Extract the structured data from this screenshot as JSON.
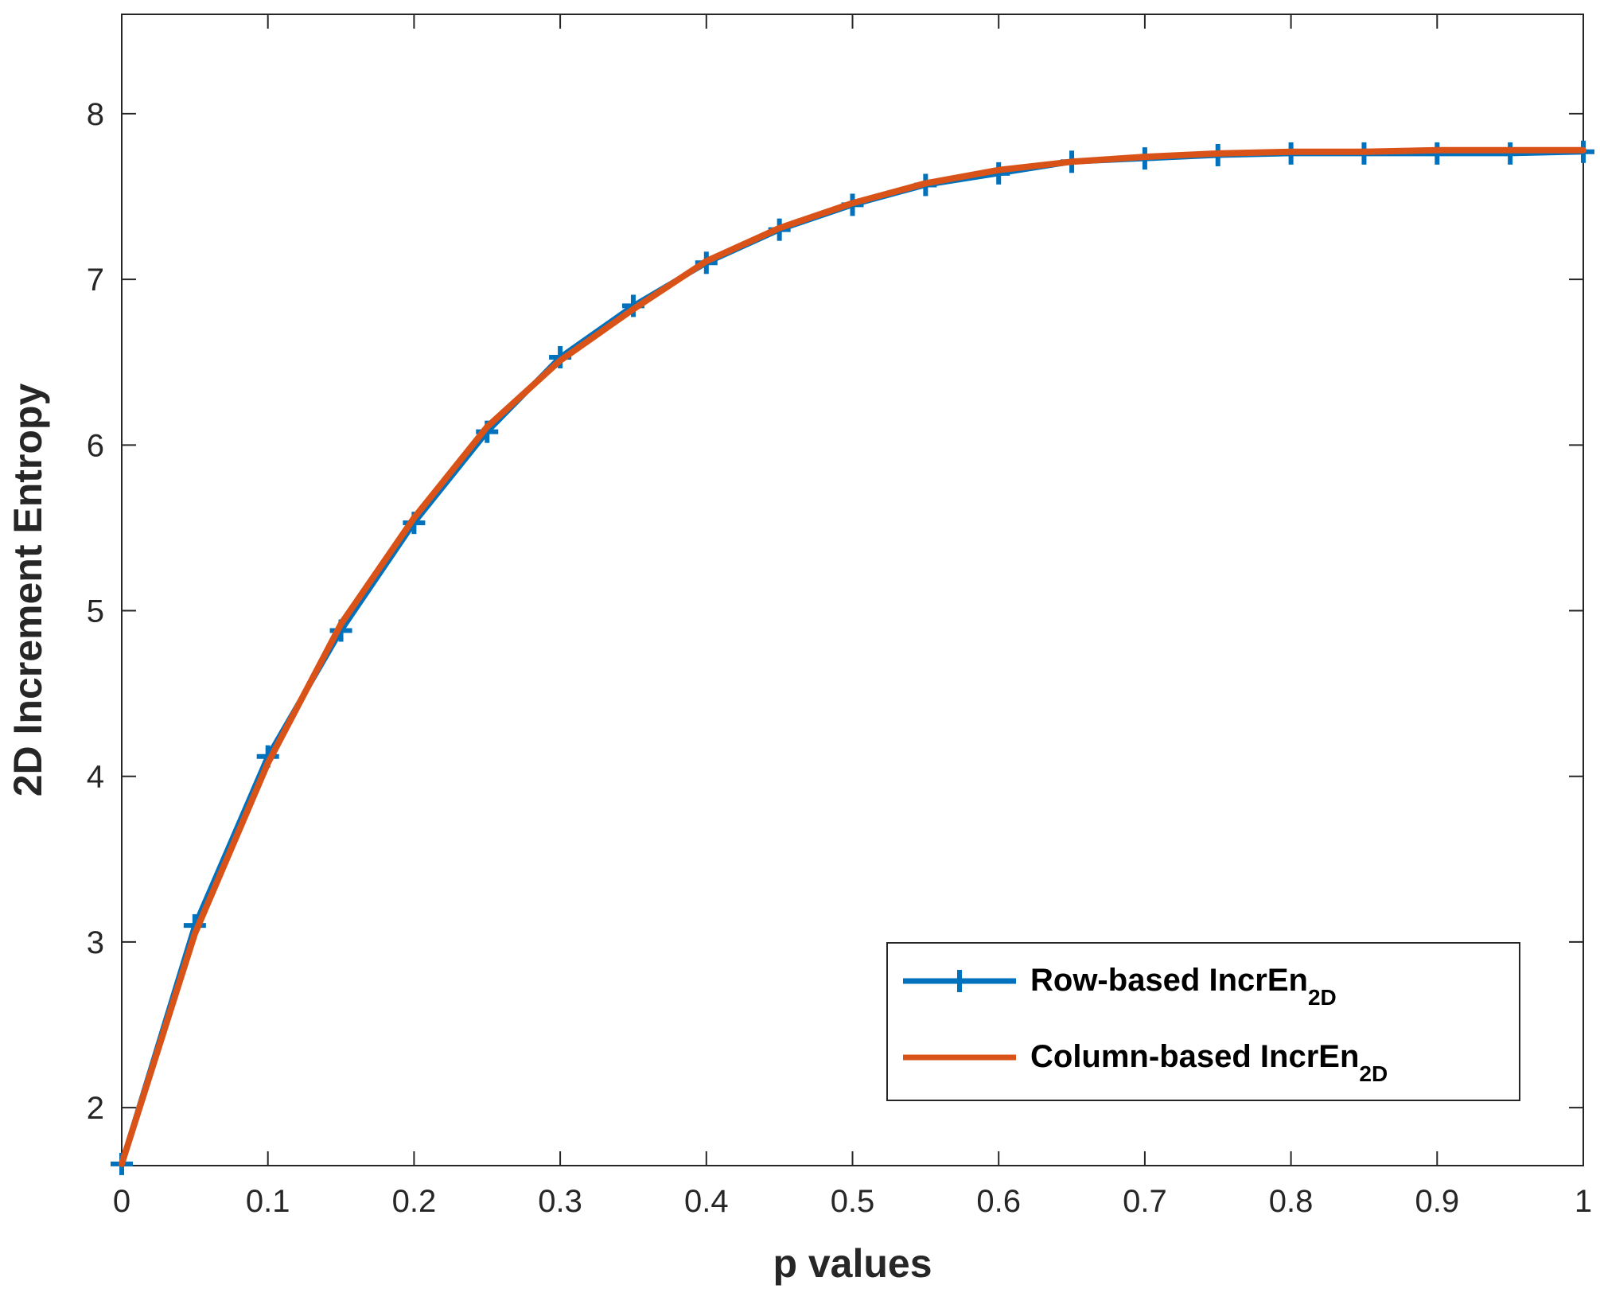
{
  "chart_data": {
    "type": "line",
    "xlabel": "p values",
    "ylabel": "2D Increment Entropy",
    "xlim": [
      0,
      1
    ],
    "ylim": [
      1.65,
      8.6
    ],
    "xticks": [
      0,
      0.1,
      0.2,
      0.3,
      0.4,
      0.5,
      0.6,
      0.7,
      0.8,
      0.9,
      1
    ],
    "xtick_labels": [
      "0",
      "0.1",
      "0.2",
      "0.3",
      "0.4",
      "0.5",
      "0.6",
      "0.7",
      "0.8",
      "0.9",
      "1"
    ],
    "yticks": [
      2,
      3,
      4,
      5,
      6,
      7,
      8
    ],
    "ytick_labels": [
      "2",
      "3",
      "4",
      "5",
      "6",
      "7",
      "8"
    ],
    "grid": false,
    "legend_position": "bottom-right",
    "x": [
      0,
      0.05,
      0.1,
      0.15,
      0.2,
      0.25,
      0.3,
      0.35,
      0.4,
      0.45,
      0.5,
      0.55,
      0.6,
      0.65,
      0.7,
      0.75,
      0.8,
      0.85,
      0.9,
      0.95,
      1
    ],
    "series": [
      {
        "name_main": "Row-based IncrEn",
        "name_sub": "2D",
        "color": "#0072BD",
        "marker": "+",
        "values": [
          1.66,
          3.1,
          4.12,
          4.88,
          5.53,
          6.08,
          6.53,
          6.84,
          7.1,
          7.3,
          7.45,
          7.57,
          7.64,
          7.71,
          7.73,
          7.75,
          7.76,
          7.76,
          7.76,
          7.76,
          7.77
        ]
      },
      {
        "name_main": "Column-based IncrEn",
        "name_sub": "2D",
        "color": "#D95319",
        "marker": "none",
        "values": [
          1.66,
          3.05,
          4.08,
          4.92,
          5.56,
          6.11,
          6.51,
          6.82,
          7.11,
          7.31,
          7.46,
          7.58,
          7.66,
          7.71,
          7.74,
          7.76,
          7.77,
          7.77,
          7.78,
          7.78,
          7.78
        ]
      }
    ]
  }
}
